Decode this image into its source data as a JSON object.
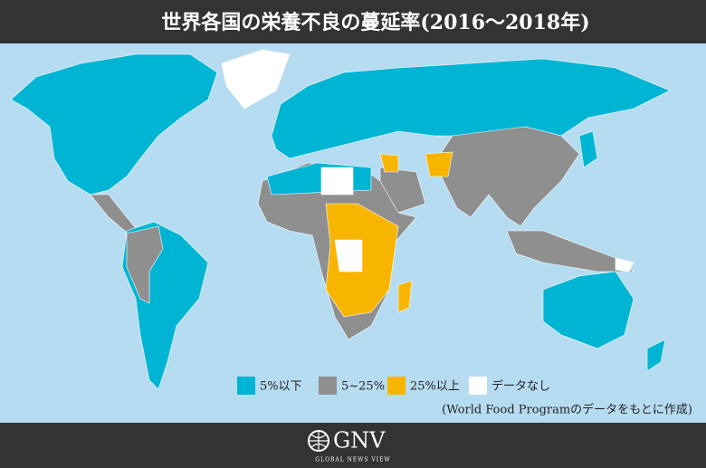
{
  "header": {
    "title": "世界各国の栄養不良の蔓延率(2016〜2018年)"
  },
  "legend": [
    {
      "label": "5%以下",
      "color": "#00b5d4"
    },
    {
      "label": "5~25%",
      "color": "#8f8f8f"
    },
    {
      "label": "25%以上",
      "color": "#f8b500"
    },
    {
      "label": "データなし",
      "color": "#ffffff"
    }
  ],
  "source": "(World Food Programのデータをもとに作成)",
  "footer": {
    "logo": "GNV",
    "tagline": "GLOBAL NEWS VIEW"
  }
}
